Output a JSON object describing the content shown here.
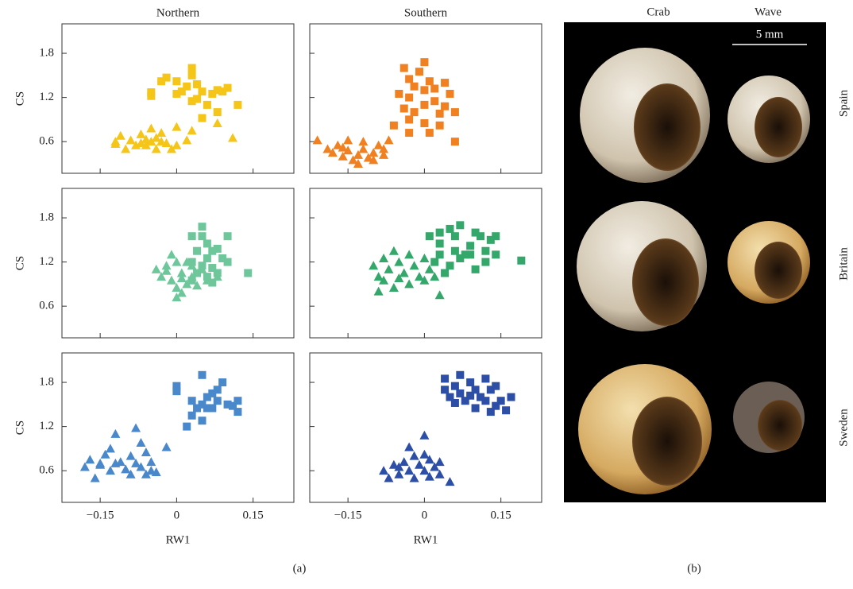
{
  "chart_data": [
    {
      "type": "scatter",
      "title": "Northern",
      "ylabel": "CS",
      "xlim": [
        -0.225,
        0.23
      ],
      "ylim": [
        0.17,
        2.2
      ],
      "xticks": [
        -0.15,
        0,
        0.15
      ],
      "yticks": [
        0.6,
        1.2,
        1.8
      ],
      "series": [
        {
          "marker": "square",
          "color": "#f5c518",
          "x": [
            0.03,
            -0.02,
            -0.03,
            0.0,
            0.03,
            0.04,
            -0.05,
            -0.05,
            0.01,
            0.02,
            0.05,
            0.07,
            0.08,
            0.1,
            0.03,
            0.06,
            0.12,
            0.05,
            0.08,
            0.0,
            0.09,
            0.04
          ],
          "values": [
            1.6,
            1.47,
            1.42,
            1.42,
            1.5,
            1.38,
            1.27,
            1.22,
            1.28,
            1.35,
            1.28,
            1.25,
            1.3,
            1.33,
            1.15,
            1.1,
            1.1,
            0.92,
            1.0,
            1.25,
            1.28,
            1.18
          ]
        },
        {
          "marker": "triangle",
          "color": "#f5c518",
          "x": [
            -0.12,
            -0.11,
            -0.12,
            -0.09,
            -0.07,
            -0.06,
            -0.05,
            -0.04,
            -0.03,
            -0.02,
            -0.08,
            -0.06,
            0.0,
            0.02,
            -0.01,
            -0.1,
            -0.04,
            0.0,
            -0.07,
            -0.05,
            -0.03,
            0.03,
            0.08,
            0.11
          ],
          "values": [
            0.6,
            0.68,
            0.57,
            0.62,
            0.7,
            0.55,
            0.78,
            0.65,
            0.72,
            0.58,
            0.55,
            0.63,
            0.8,
            0.62,
            0.5,
            0.5,
            0.5,
            0.55,
            0.58,
            0.6,
            0.6,
            0.75,
            0.85,
            0.65
          ]
        }
      ]
    },
    {
      "type": "scatter",
      "title": "Southern",
      "xlim": [
        -0.225,
        0.23
      ],
      "ylim": [
        0.17,
        2.2
      ],
      "xticks": [
        -0.15,
        0,
        0.15
      ],
      "yticks": [
        0.6,
        1.2,
        1.8
      ],
      "series": [
        {
          "marker": "square",
          "color": "#f08020",
          "x": [
            -0.04,
            0.0,
            -0.01,
            -0.03,
            0.01,
            -0.05,
            -0.03,
            -0.02,
            0.0,
            0.02,
            0.04,
            -0.04,
            -0.02,
            0.0,
            0.02,
            0.05,
            0.03,
            0.06,
            -0.06,
            -0.03,
            0.0,
            -0.03,
            0.03,
            0.01,
            0.06,
            0.04
          ],
          "values": [
            1.6,
            1.68,
            1.55,
            1.45,
            1.42,
            1.25,
            1.2,
            1.35,
            1.3,
            1.32,
            1.4,
            1.05,
            1.0,
            1.1,
            1.15,
            1.25,
            0.98,
            1.0,
            0.82,
            0.72,
            0.85,
            0.9,
            0.82,
            0.72,
            0.6,
            1.08
          ]
        },
        {
          "marker": "triangle",
          "color": "#f08020",
          "x": [
            -0.21,
            -0.19,
            -0.18,
            -0.17,
            -0.16,
            -0.15,
            -0.14,
            -0.13,
            -0.12,
            -0.11,
            -0.1,
            -0.09,
            -0.08,
            -0.07,
            -0.13,
            -0.16,
            -0.12,
            -0.1,
            -0.15,
            -0.08
          ],
          "values": [
            0.62,
            0.5,
            0.45,
            0.55,
            0.4,
            0.48,
            0.35,
            0.42,
            0.5,
            0.38,
            0.45,
            0.55,
            0.42,
            0.62,
            0.3,
            0.52,
            0.6,
            0.35,
            0.62,
            0.5
          ]
        }
      ]
    },
    {
      "type": "scatter",
      "ylabel": "CS",
      "xlim": [
        -0.225,
        0.23
      ],
      "ylim": [
        0.17,
        2.2
      ],
      "xticks": [
        -0.15,
        0,
        0.15
      ],
      "yticks": [
        0.6,
        1.2,
        1.8
      ],
      "series": [
        {
          "marker": "square",
          "color": "#6dc79a",
          "x": [
            0.05,
            0.03,
            0.05,
            0.1,
            0.06,
            0.04,
            0.07,
            0.08,
            0.09,
            0.06,
            0.03,
            0.05,
            0.07,
            0.1,
            0.04,
            0.06,
            0.08,
            0.14,
            0.03,
            0.07
          ],
          "values": [
            1.68,
            1.55,
            1.55,
            1.55,
            1.45,
            1.35,
            1.35,
            1.38,
            1.25,
            1.25,
            1.2,
            1.15,
            1.12,
            1.2,
            1.05,
            1.0,
            1.05,
            1.05,
            0.95,
            0.92
          ]
        },
        {
          "marker": "triangle",
          "color": "#6dc79a",
          "x": [
            -0.04,
            -0.03,
            -0.02,
            -0.01,
            0.0,
            0.01,
            -0.01,
            0.0,
            0.0,
            0.01,
            0.02,
            0.03,
            0.05,
            0.04,
            0.06,
            0.02,
            -0.02,
            0.08,
            0.03,
            0.01
          ],
          "values": [
            1.1,
            1.0,
            1.15,
            1.3,
            1.2,
            1.05,
            0.95,
            0.85,
            0.72,
            0.78,
            0.9,
            1.0,
            1.1,
            0.88,
            0.95,
            1.2,
            1.08,
            1.0,
            1.15,
            0.98
          ]
        }
      ]
    },
    {
      "type": "scatter",
      "xlim": [
        -0.225,
        0.23
      ],
      "ylim": [
        0.17,
        2.2
      ],
      "xticks": [
        -0.15,
        0,
        0.15
      ],
      "yticks": [
        0.6,
        1.2,
        1.8
      ],
      "series": [
        {
          "marker": "square",
          "color": "#33a86a",
          "x": [
            0.01,
            0.03,
            0.05,
            0.07,
            0.06,
            0.1,
            0.11,
            0.13,
            0.14,
            0.09,
            0.12,
            0.14,
            0.08,
            0.06,
            0.03,
            0.02,
            0.05,
            0.07,
            0.1,
            0.09,
            0.12,
            0.19,
            0.04,
            0.03
          ],
          "values": [
            1.55,
            1.6,
            1.65,
            1.7,
            1.55,
            1.6,
            1.55,
            1.5,
            1.55,
            1.42,
            1.35,
            1.3,
            1.3,
            1.35,
            1.45,
            1.2,
            1.15,
            1.25,
            1.1,
            1.3,
            1.2,
            1.22,
            1.05,
            1.3
          ]
        },
        {
          "marker": "triangle",
          "color": "#33a86a",
          "x": [
            -0.1,
            -0.09,
            -0.08,
            -0.07,
            -0.06,
            -0.05,
            -0.04,
            -0.03,
            -0.02,
            -0.01,
            0.0,
            0.01,
            -0.09,
            -0.06,
            -0.03,
            0.0,
            0.03,
            0.02,
            -0.08,
            -0.05
          ],
          "values": [
            1.15,
            1.0,
            1.25,
            1.1,
            1.35,
            1.2,
            1.05,
            1.3,
            1.15,
            1.0,
            1.25,
            1.1,
            0.8,
            0.85,
            0.9,
            0.95,
            0.75,
            1.0,
            0.95,
            0.98
          ]
        }
      ]
    },
    {
      "type": "scatter",
      "ylabel": "CS",
      "xlabel": "RW1",
      "xlim": [
        -0.225,
        0.23
      ],
      "ylim": [
        0.17,
        2.2
      ],
      "xticks": [
        {
          "value": -0.15,
          "label": "−0.15"
        },
        0,
        0.15
      ],
      "yticks": [
        0.6,
        1.2,
        1.8
      ],
      "series": [
        {
          "marker": "square",
          "color": "#4a88cc",
          "x": [
            0.05,
            0.0,
            0.0,
            0.03,
            0.05,
            0.06,
            0.08,
            0.07,
            0.08,
            0.1,
            0.11,
            0.12,
            0.12,
            0.04,
            0.03,
            0.07,
            0.02,
            0.05,
            0.09,
            0.06
          ],
          "values": [
            1.9,
            1.75,
            1.68,
            1.55,
            1.5,
            1.45,
            1.7,
            1.65,
            1.55,
            1.5,
            1.48,
            1.55,
            1.4,
            1.45,
            1.35,
            1.45,
            1.2,
            1.28,
            1.8,
            1.6
          ]
        },
        {
          "marker": "triangle",
          "color": "#4a88cc",
          "x": [
            -0.18,
            -0.17,
            -0.16,
            -0.15,
            -0.14,
            -0.13,
            -0.12,
            -0.12,
            -0.11,
            -0.1,
            -0.09,
            -0.09,
            -0.08,
            -0.08,
            -0.07,
            -0.07,
            -0.06,
            -0.06,
            -0.05,
            -0.05,
            -0.04,
            -0.02,
            -0.13,
            -0.15
          ],
          "values": [
            0.65,
            0.75,
            0.5,
            0.68,
            0.82,
            0.6,
            1.1,
            0.7,
            0.72,
            0.62,
            0.8,
            0.55,
            1.18,
            0.7,
            0.98,
            0.65,
            0.85,
            0.55,
            0.72,
            0.6,
            0.58,
            0.92,
            0.9,
            0.7
          ]
        }
      ]
    },
    {
      "type": "scatter",
      "xlabel": "RW1",
      "xlim": [
        -0.225,
        0.23
      ],
      "ylim": [
        0.17,
        2.2
      ],
      "xticks": [
        {
          "value": -0.15,
          "label": "−0.15"
        },
        0,
        0.15
      ],
      "yticks": [
        0.6,
        1.2,
        1.8
      ],
      "series": [
        {
          "marker": "square",
          "color": "#2c4ea6",
          "x": [
            0.04,
            0.04,
            0.05,
            0.06,
            0.07,
            0.07,
            0.08,
            0.09,
            0.09,
            0.1,
            0.11,
            0.12,
            0.12,
            0.13,
            0.13,
            0.14,
            0.15,
            0.16,
            0.17,
            0.1,
            0.06,
            0.14
          ],
          "values": [
            1.85,
            1.7,
            1.6,
            1.75,
            1.9,
            1.65,
            1.55,
            1.8,
            1.62,
            1.7,
            1.6,
            1.85,
            1.55,
            1.7,
            1.4,
            1.75,
            1.55,
            1.42,
            1.6,
            1.45,
            1.52,
            1.48
          ]
        },
        {
          "marker": "triangle",
          "color": "#2c4ea6",
          "x": [
            -0.08,
            -0.07,
            -0.06,
            -0.05,
            -0.04,
            -0.03,
            -0.02,
            -0.02,
            -0.01,
            0.0,
            0.0,
            0.01,
            0.01,
            0.02,
            0.03,
            0.03,
            -0.03,
            0.05,
            -0.05,
            0.0
          ],
          "values": [
            0.6,
            0.5,
            0.68,
            0.55,
            0.72,
            0.6,
            0.8,
            0.5,
            0.68,
            1.08,
            0.6,
            0.75,
            0.52,
            0.65,
            0.55,
            0.72,
            0.92,
            0.45,
            0.65,
            0.82
          ]
        }
      ]
    }
  ],
  "photo": {
    "columns": [
      "Crab",
      "Wave"
    ],
    "scale_bar": "5 mm",
    "rows": [
      "Spain",
      "Britain",
      "Sweden"
    ]
  },
  "panel_labels": [
    "(a)",
    "(b)"
  ]
}
